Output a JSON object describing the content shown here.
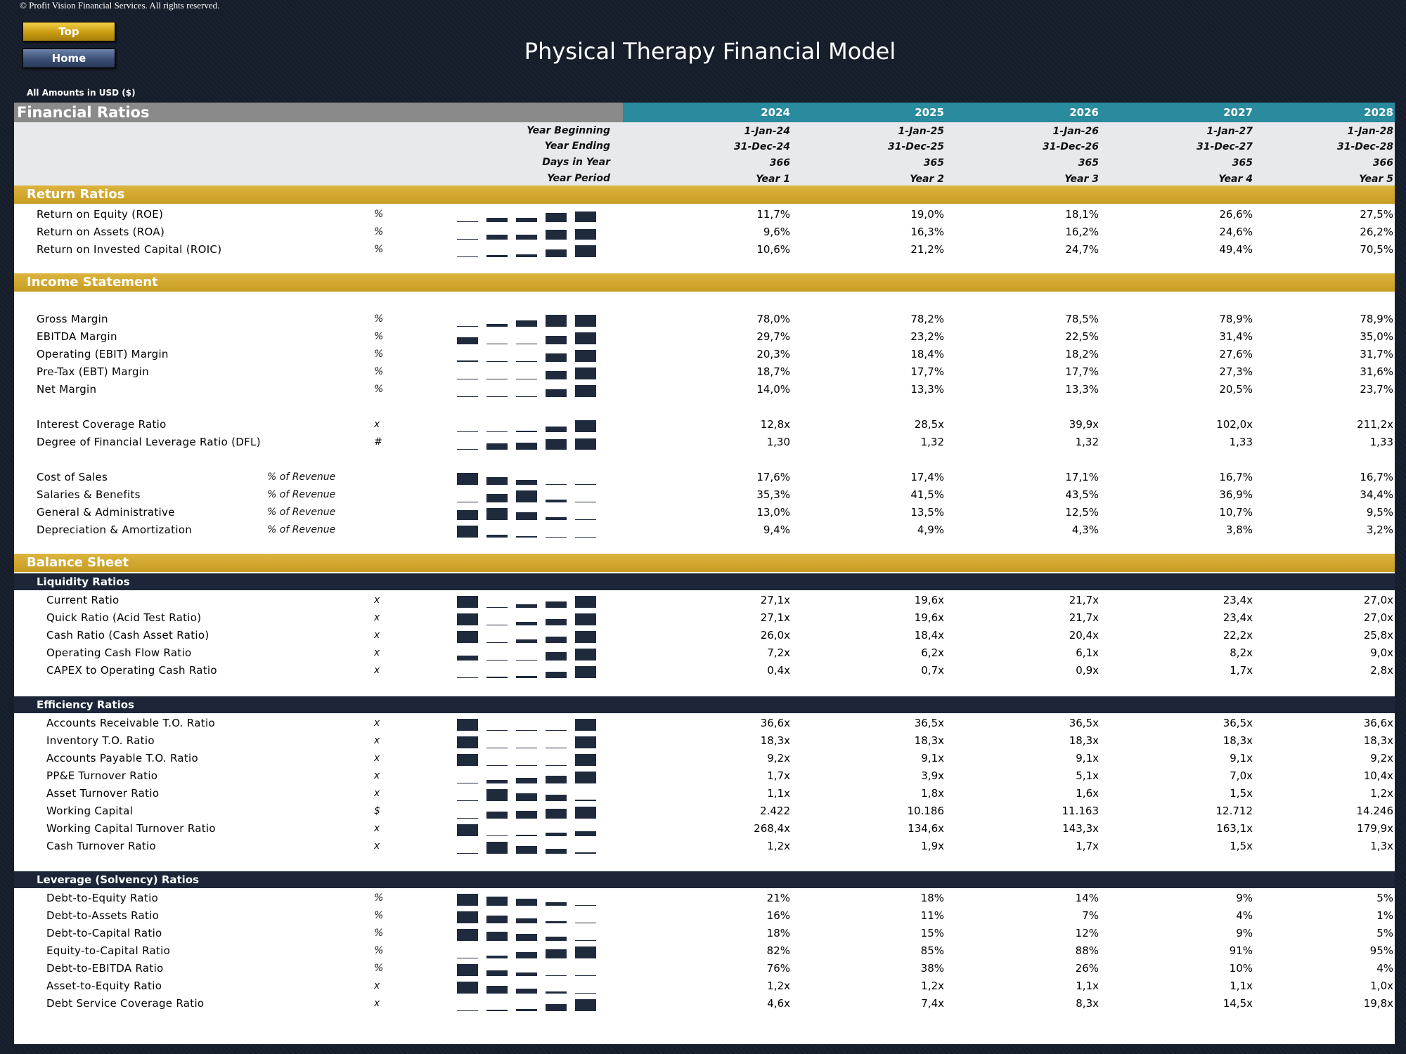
{
  "copyright": "© Profit Vision Financial Services. All rights reserved.",
  "nav": {
    "top_label": "Top",
    "home_label": "Home"
  },
  "title": "Physical Therapy Financial Model",
  "amounts_note": "All Amounts in  USD ($)",
  "header": {
    "section_title": "Financial Ratios",
    "years": [
      "2024",
      "2025",
      "2026",
      "2027",
      "2028"
    ],
    "meta_labels": {
      "year_beginning": "Year Beginning",
      "year_ending": "Year Ending",
      "days": "Days in Year",
      "period": "Year Period"
    },
    "year_beginning": [
      "1-Jan-24",
      "1-Jan-25",
      "1-Jan-26",
      "1-Jan-27",
      "1-Jan-28"
    ],
    "year_ending": [
      "31-Dec-24",
      "31-Dec-25",
      "31-Dec-26",
      "31-Dec-27",
      "31-Dec-28"
    ],
    "days": [
      "366",
      "365",
      "365",
      "365",
      "366"
    ],
    "period": [
      "Year 1",
      "Year 2",
      "Year 3",
      "Year 4",
      "Year 5"
    ]
  },
  "sections": {
    "return_ratios": "Return Ratios",
    "income_statement": "Income Statement",
    "balance_sheet": "Balance Sheet",
    "liquidity": "Liquidity Ratios",
    "efficiency": "Efficiency Ratios",
    "leverage": "Leverage (Solvency) Ratios"
  },
  "rows": {
    "roe": {
      "label": "Return on Equity (ROE)",
      "unit": "%",
      "values": [
        "11,7%",
        "19,0%",
        "18,1%",
        "26,6%",
        "27,5%"
      ],
      "spark": [
        0,
        0.3,
        0.3,
        0.7,
        0.8
      ]
    },
    "roa": {
      "label": "Return on Assets (ROA)",
      "unit": "%",
      "values": [
        "9,6%",
        "16,3%",
        "16,2%",
        "24,6%",
        "26,2%"
      ],
      "spark": [
        0,
        0.35,
        0.35,
        0.75,
        0.8
      ]
    },
    "roic": {
      "label": "Return on Invested Capital (ROIC)",
      "unit": "%",
      "values": [
        "10,6%",
        "21,2%",
        "24,7%",
        "49,4%",
        "70,5%"
      ],
      "spark": [
        0,
        0.15,
        0.2,
        0.6,
        0.9
      ]
    },
    "gross_margin": {
      "label": "Gross Margin",
      "unit": "%",
      "values": [
        "78,0%",
        "78,2%",
        "78,5%",
        "78,9%",
        "78,9%"
      ],
      "spark": [
        0,
        0.2,
        0.45,
        0.9,
        0.9
      ]
    },
    "ebitda_margin": {
      "label": "EBITDA Margin",
      "unit": "%",
      "values": [
        "29,7%",
        "23,2%",
        "22,5%",
        "31,4%",
        "35,0%"
      ],
      "spark": [
        0.5,
        0,
        0,
        0.65,
        0.9
      ]
    },
    "ebit_margin": {
      "label": "Operating (EBIT) Margin",
      "unit": "%",
      "values": [
        "20,3%",
        "18,4%",
        "18,2%",
        "27,6%",
        "31,7%"
      ],
      "spark": [
        0.1,
        0,
        0,
        0.65,
        0.9
      ]
    },
    "ebt_margin": {
      "label": "Pre-Tax (EBT) Margin",
      "unit": "%",
      "values": [
        "18,7%",
        "17,7%",
        "17,7%",
        "27,3%",
        "31,6%"
      ],
      "spark": [
        0.05,
        0,
        0,
        0.65,
        0.9
      ]
    },
    "net_margin": {
      "label": "Net Margin",
      "unit": "%",
      "values": [
        "14,0%",
        "13,3%",
        "13,3%",
        "20,5%",
        "23,7%"
      ],
      "spark": [
        0.05,
        0,
        0,
        0.6,
        0.9
      ]
    },
    "interest_coverage": {
      "label": "Interest Coverage Ratio",
      "unit": "x",
      "values": [
        "12,8x",
        "28,5x",
        "39,9x",
        "102,0x",
        "211,2x"
      ],
      "spark": [
        0,
        0.05,
        0.1,
        0.4,
        0.9
      ]
    },
    "dfl": {
      "label": "Degree of Financial Leverage Ratio (DFL)",
      "unit": "#",
      "values": [
        "1,30",
        "1,32",
        "1,32",
        "1,33",
        "1,33"
      ],
      "spark": [
        0,
        0.45,
        0.55,
        0.8,
        0.85
      ]
    },
    "cost_of_sales": {
      "label": "Cost of Sales",
      "unit": "% of Revenue",
      "values": [
        "17,6%",
        "17,4%",
        "17,1%",
        "16,7%",
        "16,7%"
      ],
      "spark": [
        0.9,
        0.6,
        0.35,
        0,
        0
      ]
    },
    "salaries": {
      "label": "Salaries & Benefits",
      "unit": "% of Revenue",
      "values": [
        "35,3%",
        "41,5%",
        "43,5%",
        "36,9%",
        "34,4%"
      ],
      "spark": [
        0.05,
        0.65,
        0.9,
        0.2,
        0
      ]
    },
    "g_and_a": {
      "label": "General & Administrative",
      "unit": "% of Revenue",
      "values": [
        "13,0%",
        "13,5%",
        "12,5%",
        "10,7%",
        "9,5%"
      ],
      "spark": [
        0.75,
        0.9,
        0.6,
        0.2,
        0
      ]
    },
    "d_and_a": {
      "label": "Depreciation & Amortization",
      "unit": "% of Revenue",
      "values": [
        "9,4%",
        "4,9%",
        "4,3%",
        "3,8%",
        "3,2%"
      ],
      "spark": [
        0.9,
        0.2,
        0.1,
        0.05,
        0
      ]
    },
    "current_ratio": {
      "label": "Current Ratio",
      "unit": "x",
      "values": [
        "27,1x",
        "19,6x",
        "21,7x",
        "23,4x",
        "27,0x"
      ],
      "spark": [
        0.9,
        0,
        0.25,
        0.45,
        0.9
      ]
    },
    "quick_ratio": {
      "label": "Quick Ratio (Acid Test Ratio)",
      "unit": "x",
      "values": [
        "27,1x",
        "19,6x",
        "21,7x",
        "23,4x",
        "27,0x"
      ],
      "spark": [
        0.9,
        0,
        0.25,
        0.45,
        0.9
      ]
    },
    "cash_ratio": {
      "label": "Cash Ratio (Cash Asset Ratio)",
      "unit": "x",
      "values": [
        "26,0x",
        "18,4x",
        "20,4x",
        "22,2x",
        "25,8x"
      ],
      "spark": [
        0.9,
        0,
        0.25,
        0.45,
        0.9
      ]
    },
    "ocf_ratio": {
      "label": "Operating Cash Flow Ratio",
      "unit": "x",
      "values": [
        "7,2x",
        "6,2x",
        "6,1x",
        "8,2x",
        "9,0x"
      ],
      "spark": [
        0.35,
        0.05,
        0,
        0.65,
        0.9
      ]
    },
    "capex_ocf": {
      "label": "CAPEX to Operating Cash Ratio",
      "unit": "x",
      "values": [
        "0,4x",
        "0,7x",
        "0,9x",
        "1,7x",
        "2,8x"
      ],
      "spark": [
        0,
        0.1,
        0.15,
        0.45,
        0.9
      ]
    },
    "ar_turnover": {
      "label": "Accounts Receivable T.O. Ratio",
      "unit": "x",
      "values": [
        "36,6x",
        "36,5x",
        "36,5x",
        "36,5x",
        "36,6x"
      ],
      "spark": [
        0.9,
        0,
        0,
        0,
        0.9
      ]
    },
    "inv_turnover": {
      "label": "Inventory T.O. Ratio",
      "unit": "x",
      "values": [
        "18,3x",
        "18,3x",
        "18,3x",
        "18,3x",
        "18,3x"
      ],
      "spark": [
        0.9,
        0,
        0,
        0,
        0.9
      ]
    },
    "ap_turnover": {
      "label": "Accounts Payable T.O. Ratio",
      "unit": "x",
      "values": [
        "9,2x",
        "9,1x",
        "9,1x",
        "9,1x",
        "9,2x"
      ],
      "spark": [
        0.9,
        0,
        0,
        0,
        0.9
      ]
    },
    "ppe_turnover": {
      "label": "PP&E Turnover Ratio",
      "unit": "x",
      "values": [
        "1,7x",
        "3,9x",
        "5,1x",
        "7,0x",
        "10,4x"
      ],
      "spark": [
        0,
        0.25,
        0.4,
        0.6,
        0.9
      ]
    },
    "asset_turnover": {
      "label": "Asset Turnover Ratio",
      "unit": "x",
      "values": [
        "1,1x",
        "1,8x",
        "1,6x",
        "1,5x",
        "1,2x"
      ],
      "spark": [
        0,
        0.9,
        0.6,
        0.45,
        0.1
      ]
    },
    "working_capital": {
      "label": "Working Capital",
      "unit": "$",
      "values": [
        "2.422",
        "10.186",
        "11.163",
        "12.712",
        "14.246"
      ],
      "spark": [
        0,
        0.55,
        0.6,
        0.75,
        0.9
      ]
    },
    "wc_turnover": {
      "label": "Working Capital Turnover Ratio",
      "unit": "x",
      "values": [
        "268,4x",
        "134,6x",
        "143,3x",
        "163,1x",
        "179,9x"
      ],
      "spark": [
        0.9,
        0,
        0.1,
        0.25,
        0.35
      ]
    },
    "cash_turnover": {
      "label": "Cash Turnover Ratio",
      "unit": "x",
      "values": [
        "1,2x",
        "1,9x",
        "1,7x",
        "1,5x",
        "1,3x"
      ],
      "spark": [
        0,
        0.9,
        0.6,
        0.35,
        0.1
      ]
    },
    "debt_equity": {
      "label": "Debt-to-Equity Ratio",
      "unit": "%",
      "values": [
        "21%",
        "18%",
        "14%",
        "9%",
        "5%"
      ],
      "spark": [
        0.9,
        0.7,
        0.5,
        0.25,
        0
      ]
    },
    "debt_assets": {
      "label": "Debt-to-Assets Ratio",
      "unit": "%",
      "values": [
        "16%",
        "11%",
        "7%",
        "4%",
        "1%"
      ],
      "spark": [
        0.9,
        0.6,
        0.35,
        0.15,
        0
      ]
    },
    "debt_capital": {
      "label": "Debt-to-Capital Ratio",
      "unit": "%",
      "values": [
        "18%",
        "15%",
        "12%",
        "9%",
        "5%"
      ],
      "spark": [
        0.9,
        0.7,
        0.5,
        0.3,
        0
      ]
    },
    "equity_capital": {
      "label": "Equity-to-Capital Ratio",
      "unit": "%",
      "values": [
        "82%",
        "85%",
        "88%",
        "91%",
        "95%"
      ],
      "spark": [
        0,
        0.2,
        0.45,
        0.7,
        0.9
      ]
    },
    "debt_ebitda": {
      "label": "Debt-to-EBITDA Ratio",
      "unit": "%",
      "values": [
        "76%",
        "38%",
        "26%",
        "10%",
        "4%"
      ],
      "spark": [
        0.9,
        0.4,
        0.25,
        0.05,
        0
      ]
    },
    "asset_equity": {
      "label": "Asset-to-Equity Ratio",
      "unit": "x",
      "values": [
        "1,2x",
        "1,2x",
        "1,1x",
        "1,1x",
        "1,0x"
      ],
      "spark": [
        0.9,
        0.6,
        0.35,
        0.15,
        0
      ]
    },
    "dscr": {
      "label": "Debt Service Coverage Ratio",
      "unit": "x",
      "values": [
        "4,6x",
        "7,4x",
        "8,3x",
        "14,5x",
        "19,8x"
      ],
      "spark": [
        0,
        0.1,
        0.15,
        0.55,
        0.9
      ]
    }
  },
  "colors": {
    "accent_teal": "#2a8a9e",
    "section_gold": "#d4a82e",
    "subsection_navy": "#1c2638",
    "spark_bar": "#1f2a3d"
  }
}
